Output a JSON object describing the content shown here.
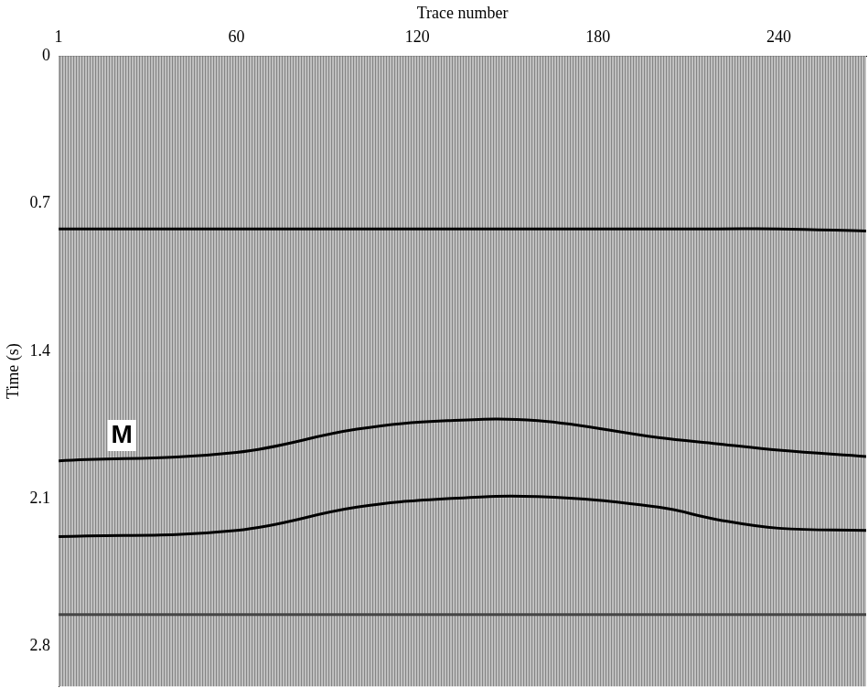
{
  "chart_data": {
    "type": "line",
    "x_label": "Trace number",
    "y_label": "Time (s)",
    "x": [
      1,
      60,
      100,
      130,
      160,
      200,
      220,
      240,
      269
    ],
    "series": [
      {
        "color": "#000000",
        "values": [
          0.82,
          0.82,
          0.82,
          0.82,
          0.82,
          0.82,
          0.82,
          0.82,
          0.83
        ]
      },
      {
        "color": "#000000",
        "values": [
          1.92,
          1.88,
          1.77,
          1.73,
          1.73,
          1.81,
          1.84,
          1.87,
          1.9
        ]
      },
      {
        "color": "#000000",
        "values": [
          2.28,
          2.25,
          2.14,
          2.1,
          2.09,
          2.14,
          2.2,
          2.24,
          2.25
        ]
      },
      {
        "color": "#444444",
        "values": [
          2.65,
          2.65,
          2.65,
          2.65,
          2.65,
          2.65,
          2.65,
          2.65,
          2.65
        ]
      }
    ],
    "xlim": [
      1,
      269
    ],
    "xticks": [
      1,
      60,
      120,
      180,
      240
    ],
    "ylim": [
      0,
      2.99
    ],
    "yticks": [
      0,
      0.7,
      1.4,
      2.1,
      2.8
    ],
    "annotations": [
      {
        "text": "M",
        "x": 22,
        "y": 1.8
      }
    ],
    "grid": false,
    "tick_labels": true
  }
}
